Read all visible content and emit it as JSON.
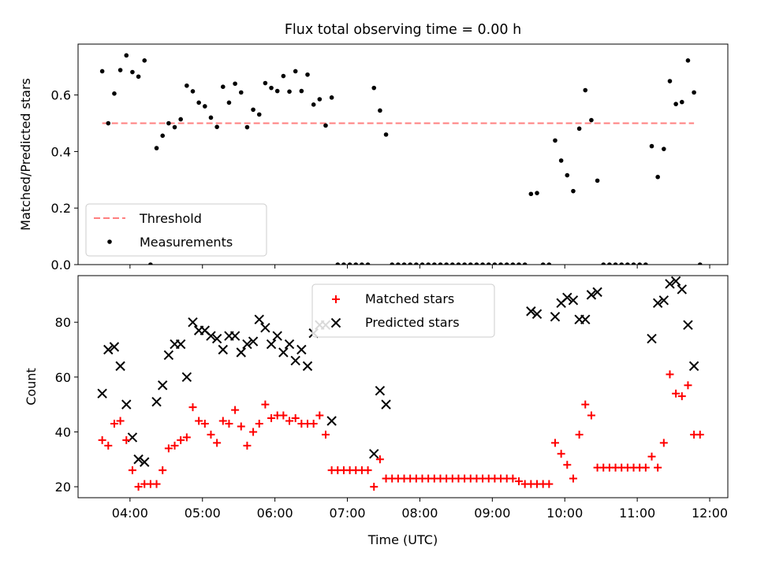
{
  "chart_data": [
    {
      "type": "scatter",
      "title": "Flux total observing time = 0.00 h",
      "ylabel": "Matched/Predicted stars",
      "xlim": [
        "03:17",
        "12:15"
      ],
      "ylim": [
        0,
        0.78
      ],
      "yticks": [
        "0.0",
        "0.2",
        "0.4",
        "0.6"
      ],
      "legend_position": "lower-left",
      "threshold": {
        "name": "Threshold",
        "color": "#ff7f7f",
        "style": "dashed",
        "x": [
          "03:37",
          "11:47"
        ],
        "y": 0.5
      },
      "series": [
        {
          "name": "Measurements",
          "color": "#000000",
          "marker": "dot",
          "points": [
            [
              "03:37",
              0.684
            ],
            [
              "03:42",
              0.5
            ],
            [
              "03:47",
              0.605
            ],
            [
              "03:52",
              0.688
            ],
            [
              "03:57",
              0.74
            ],
            [
              "04:02",
              0.681
            ],
            [
              "04:07",
              0.665
            ],
            [
              "04:12",
              0.722
            ],
            [
              "04:17",
              0.0
            ],
            [
              "04:22",
              0.412
            ],
            [
              "04:27",
              0.456
            ],
            [
              "04:32",
              0.5
            ],
            [
              "04:37",
              0.486
            ],
            [
              "04:42",
              0.514
            ],
            [
              "04:47",
              0.633
            ],
            [
              "04:52",
              0.613
            ],
            [
              "04:57",
              0.573
            ],
            [
              "05:02",
              0.56
            ],
            [
              "05:07",
              0.52
            ],
            [
              "05:12",
              0.487
            ],
            [
              "05:17",
              0.629
            ],
            [
              "05:22",
              0.573
            ],
            [
              "05:27",
              0.64
            ],
            [
              "05:32",
              0.609
            ],
            [
              "05:37",
              0.486
            ],
            [
              "05:42",
              0.548
            ],
            [
              "05:47",
              0.531
            ],
            [
              "05:52",
              0.642
            ],
            [
              "05:57",
              0.625
            ],
            [
              "06:02",
              0.614
            ],
            [
              "06:07",
              0.667
            ],
            [
              "06:12",
              0.612
            ],
            [
              "06:17",
              0.684
            ],
            [
              "06:22",
              0.614
            ],
            [
              "06:27",
              0.672
            ],
            [
              "06:32",
              0.566
            ],
            [
              "06:37",
              0.585
            ],
            [
              "06:42",
              0.492
            ],
            [
              "06:47",
              0.591
            ],
            [
              "06:52",
              0.0
            ],
            [
              "06:57",
              0.0
            ],
            [
              "07:02",
              0.0
            ],
            [
              "07:07",
              0.0
            ],
            [
              "07:12",
              0.0
            ],
            [
              "07:17",
              0.0
            ],
            [
              "07:22",
              0.625
            ],
            [
              "07:27",
              0.545
            ],
            [
              "07:32",
              0.46
            ],
            [
              "07:37",
              0.0
            ],
            [
              "07:42",
              0.0
            ],
            [
              "07:47",
              0.0
            ],
            [
              "07:52",
              0.0
            ],
            [
              "07:57",
              0.0
            ],
            [
              "08:02",
              0.0
            ],
            [
              "08:07",
              0.0
            ],
            [
              "08:12",
              0.0
            ],
            [
              "08:17",
              0.0
            ],
            [
              "08:22",
              0.0
            ],
            [
              "08:27",
              0.0
            ],
            [
              "08:32",
              0.0
            ],
            [
              "08:37",
              0.0
            ],
            [
              "08:42",
              0.0
            ],
            [
              "08:47",
              0.0
            ],
            [
              "08:52",
              0.0
            ],
            [
              "08:57",
              0.0
            ],
            [
              "09:02",
              0.0
            ],
            [
              "09:07",
              0.0
            ],
            [
              "09:12",
              0.0
            ],
            [
              "09:17",
              0.0
            ],
            [
              "09:22",
              0.0
            ],
            [
              "09:27",
              0.0
            ],
            [
              "09:32",
              0.25
            ],
            [
              "09:37",
              0.253
            ],
            [
              "09:42",
              0.0
            ],
            [
              "09:47",
              0.0
            ],
            [
              "09:52",
              0.439
            ],
            [
              "09:57",
              0.368
            ],
            [
              "10:02",
              0.316
            ],
            [
              "10:07",
              0.26
            ],
            [
              "10:12",
              0.481
            ],
            [
              "10:17",
              0.617
            ],
            [
              "10:22",
              0.511
            ],
            [
              "10:27",
              0.297
            ],
            [
              "10:32",
              0.0
            ],
            [
              "10:37",
              0.0
            ],
            [
              "10:42",
              0.0
            ],
            [
              "10:47",
              0.0
            ],
            [
              "10:52",
              0.0
            ],
            [
              "10:57",
              0.0
            ],
            [
              "11:02",
              0.0
            ],
            [
              "11:07",
              0.0
            ],
            [
              "11:12",
              0.419
            ],
            [
              "11:17",
              0.31
            ],
            [
              "11:22",
              0.409
            ],
            [
              "11:27",
              0.649
            ],
            [
              "11:32",
              0.568
            ],
            [
              "11:37",
              0.575
            ],
            [
              "11:42",
              0.722
            ],
            [
              "11:47",
              0.609
            ],
            [
              "11:52",
              0.0
            ]
          ]
        }
      ]
    },
    {
      "type": "scatter",
      "ylabel": "Count",
      "xlabel": "Time (UTC)",
      "xlim": [
        "03:17",
        "12:15"
      ],
      "ylim": [
        16,
        97
      ],
      "yticks": [
        "20",
        "40",
        "60",
        "80"
      ],
      "xticks": [
        "04:00",
        "05:00",
        "06:00",
        "07:00",
        "08:00",
        "09:00",
        "10:00",
        "11:00",
        "12:00"
      ],
      "legend_position": "top-center",
      "series": [
        {
          "name": "Matched stars",
          "color": "#ff0000",
          "marker": "plus",
          "points": [
            [
              "03:37",
              37
            ],
            [
              "03:42",
              35
            ],
            [
              "03:47",
              43
            ],
            [
              "03:52",
              44
            ],
            [
              "03:57",
              37
            ],
            [
              "04:02",
              26
            ],
            [
              "04:07",
              20
            ],
            [
              "04:12",
              21
            ],
            [
              "04:17",
              21
            ],
            [
              "04:22",
              21
            ],
            [
              "04:27",
              26
            ],
            [
              "04:32",
              34
            ],
            [
              "04:37",
              35
            ],
            [
              "04:42",
              37
            ],
            [
              "04:47",
              38
            ],
            [
              "04:52",
              49
            ],
            [
              "04:57",
              44
            ],
            [
              "05:02",
              43
            ],
            [
              "05:07",
              39
            ],
            [
              "05:12",
              36
            ],
            [
              "05:17",
              44
            ],
            [
              "05:22",
              43
            ],
            [
              "05:27",
              48
            ],
            [
              "05:32",
              42
            ],
            [
              "05:37",
              35
            ],
            [
              "05:42",
              40
            ],
            [
              "05:47",
              43
            ],
            [
              "05:52",
              50
            ],
            [
              "05:57",
              45
            ],
            [
              "06:02",
              46
            ],
            [
              "06:07",
              46
            ],
            [
              "06:12",
              44
            ],
            [
              "06:17",
              45
            ],
            [
              "06:22",
              43
            ],
            [
              "06:27",
              43
            ],
            [
              "06:32",
              43
            ],
            [
              "06:37",
              46
            ],
            [
              "06:42",
              39
            ],
            [
              "06:47",
              26
            ],
            [
              "06:52",
              26
            ],
            [
              "06:57",
              26
            ],
            [
              "07:02",
              26
            ],
            [
              "07:07",
              26
            ],
            [
              "07:12",
              26
            ],
            [
              "07:17",
              26
            ],
            [
              "07:22",
              20
            ],
            [
              "07:27",
              30
            ],
            [
              "07:32",
              23
            ],
            [
              "07:37",
              23
            ],
            [
              "07:42",
              23
            ],
            [
              "07:47",
              23
            ],
            [
              "07:52",
              23
            ],
            [
              "07:57",
              23
            ],
            [
              "08:02",
              23
            ],
            [
              "08:07",
              23
            ],
            [
              "08:12",
              23
            ],
            [
              "08:17",
              23
            ],
            [
              "08:22",
              23
            ],
            [
              "08:27",
              23
            ],
            [
              "08:32",
              23
            ],
            [
              "08:37",
              23
            ],
            [
              "08:42",
              23
            ],
            [
              "08:47",
              23
            ],
            [
              "08:52",
              23
            ],
            [
              "08:57",
              23
            ],
            [
              "09:02",
              23
            ],
            [
              "09:07",
              23
            ],
            [
              "09:12",
              23
            ],
            [
              "09:17",
              23
            ],
            [
              "09:22",
              22
            ],
            [
              "09:27",
              21
            ],
            [
              "09:32",
              21
            ],
            [
              "09:37",
              21
            ],
            [
              "09:42",
              21
            ],
            [
              "09:47",
              21
            ],
            [
              "09:52",
              36
            ],
            [
              "09:57",
              32
            ],
            [
              "10:02",
              28
            ],
            [
              "10:07",
              23
            ],
            [
              "10:12",
              39
            ],
            [
              "10:17",
              50
            ],
            [
              "10:22",
              46
            ],
            [
              "10:27",
              27
            ],
            [
              "10:32",
              27
            ],
            [
              "10:37",
              27
            ],
            [
              "10:42",
              27
            ],
            [
              "10:47",
              27
            ],
            [
              "10:52",
              27
            ],
            [
              "10:57",
              27
            ],
            [
              "11:02",
              27
            ],
            [
              "11:07",
              27
            ],
            [
              "11:12",
              31
            ],
            [
              "11:17",
              27
            ],
            [
              "11:22",
              36
            ],
            [
              "11:27",
              61
            ],
            [
              "11:32",
              54
            ],
            [
              "11:37",
              53
            ],
            [
              "11:42",
              57
            ],
            [
              "11:47",
              39
            ],
            [
              "11:52",
              39
            ]
          ]
        },
        {
          "name": "Predicted stars",
          "color": "#000000",
          "marker": "x",
          "points": [
            [
              "03:37",
              54
            ],
            [
              "03:42",
              70
            ],
            [
              "03:47",
              71
            ],
            [
              "03:52",
              64
            ],
            [
              "03:57",
              50
            ],
            [
              "04:02",
              38
            ],
            [
              "04:07",
              30
            ],
            [
              "04:12",
              29
            ],
            [
              "04:22",
              51
            ],
            [
              "04:27",
              57
            ],
            [
              "04:32",
              68
            ],
            [
              "04:37",
              72
            ],
            [
              "04:42",
              72
            ],
            [
              "04:47",
              60
            ],
            [
              "04:52",
              80
            ],
            [
              "04:57",
              77
            ],
            [
              "05:02",
              77
            ],
            [
              "05:07",
              75
            ],
            [
              "05:12",
              74
            ],
            [
              "05:17",
              70
            ],
            [
              "05:22",
              75
            ],
            [
              "05:27",
              75
            ],
            [
              "05:32",
              69
            ],
            [
              "05:37",
              72
            ],
            [
              "05:42",
              73
            ],
            [
              "05:47",
              81
            ],
            [
              "05:52",
              78
            ],
            [
              "05:57",
              72
            ],
            [
              "06:02",
              75
            ],
            [
              "06:07",
              69
            ],
            [
              "06:12",
              72
            ],
            [
              "06:17",
              66
            ],
            [
              "06:22",
              70
            ],
            [
              "06:27",
              64
            ],
            [
              "06:32",
              76
            ],
            [
              "06:37",
              79
            ],
            [
              "06:42",
              79
            ],
            [
              "06:47",
              44
            ],
            [
              "07:22",
              32
            ],
            [
              "07:27",
              55
            ],
            [
              "07:32",
              50
            ],
            [
              "09:32",
              84
            ],
            [
              "09:37",
              83
            ],
            [
              "09:52",
              82
            ],
            [
              "09:57",
              87
            ],
            [
              "10:02",
              89
            ],
            [
              "10:07",
              88
            ],
            [
              "10:12",
              81
            ],
            [
              "10:17",
              81
            ],
            [
              "10:22",
              90
            ],
            [
              "10:27",
              91
            ],
            [
              "11:12",
              74
            ],
            [
              "11:17",
              87
            ],
            [
              "11:22",
              88
            ],
            [
              "11:27",
              94
            ],
            [
              "11:32",
              95
            ],
            [
              "11:37",
              92
            ],
            [
              "11:42",
              79
            ],
            [
              "11:47",
              64
            ]
          ]
        }
      ]
    }
  ]
}
